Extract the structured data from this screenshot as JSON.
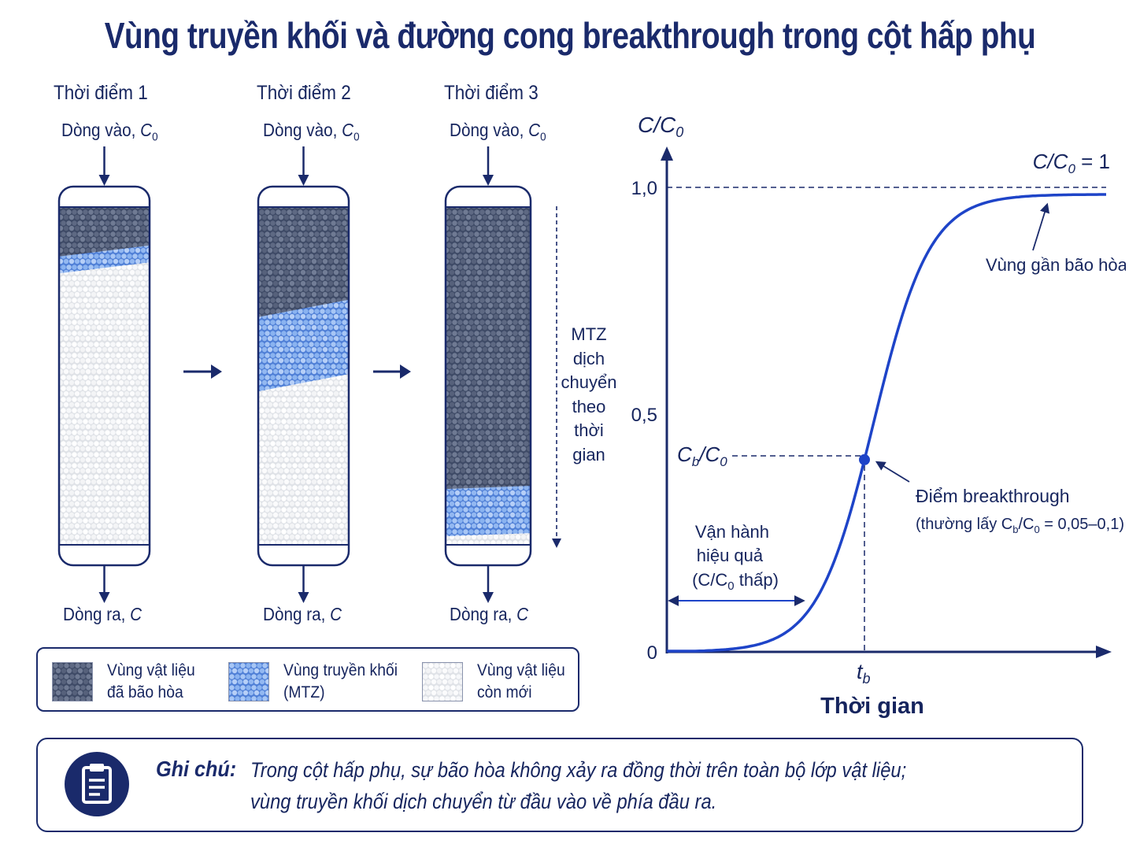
{
  "title": "Vùng truyền khối và đường cong breakthrough trong cột hấp phụ",
  "columns": [
    {
      "label": "Thời điểm 1",
      "inlet": "Dòng vào, ",
      "outlet": "Dòng ra, ",
      "saturated_fraction": 0.13,
      "mtz_fraction": 0.05
    },
    {
      "label": "Thời điểm 2",
      "inlet": "Dòng vào, ",
      "outlet": "Dòng ra, ",
      "saturated_fraction": 0.3,
      "mtz_fraction": 0.22
    },
    {
      "label": "Thời điểm 3",
      "inlet": "Dòng vào, ",
      "outlet": "Dòng ra, ",
      "saturated_fraction": 0.83,
      "mtz_fraction": 0.14
    }
  ],
  "symbols": {
    "c0": "C",
    "c0_sub": "0",
    "c": "C"
  },
  "mtz_note": [
    "MTZ",
    "dịch",
    "chuyển",
    "theo",
    "thời",
    "gian"
  ],
  "legend": [
    {
      "line1": "Vùng vật liệu",
      "line2": "đã bão hòa",
      "color": "#4a5877"
    },
    {
      "line1": "Vùng truyền khối",
      "line2": "(MTZ)",
      "color": "#7aa8ee"
    },
    {
      "line1": "Vùng vật liệu",
      "line2": "còn mới",
      "color": "#f2f3f5"
    }
  ],
  "chart_data": {
    "type": "line",
    "y_axis_label": "C/C",
    "y_axis_label_sub": "0",
    "x_axis_label": "Thời gian",
    "y_ticks": [
      "0",
      "0,5",
      "1,0"
    ],
    "y_tick_values": [
      0,
      0.5,
      1.0
    ],
    "ylim": [
      0,
      1.05
    ],
    "saturation_label": "C/C",
    "saturation_label_sub": "0",
    "saturation_label_suffix": " = 1",
    "breakthrough_y_label": "C",
    "breakthrough_y_label_sub_b": "b",
    "breakthrough_y_label_mid": "/C",
    "breakthrough_y_label_sub_0": "0",
    "breakthrough_value": 0.42,
    "tb_label": "t",
    "tb_sub": "b",
    "curve_note": "Vùng gần bão hòa",
    "breakthrough_point_label": "Điểm breakthrough",
    "breakthrough_note_prefix": "(thường lấy C",
    "breakthrough_note_mid": "/C",
    "breakthrough_note_suffix": " = 0,05–0,1)",
    "operation_label": [
      "Vận hành",
      "hiệu quả",
      "(C/C",
      "0",
      " thấp)"
    ],
    "color": "#1e44c8"
  },
  "note": {
    "label": "Ghi chú:",
    "line1": "Trong cột hấp phụ, sự bão hòa không xảy ra đồng thời trên toàn bộ lớp vật liệu;",
    "line2": "vùng truyền khối dịch chuyển từ đầu vào về phía đầu ra."
  },
  "icons": {
    "note": "clipboard-icon",
    "step": "arrow-right-icon"
  }
}
